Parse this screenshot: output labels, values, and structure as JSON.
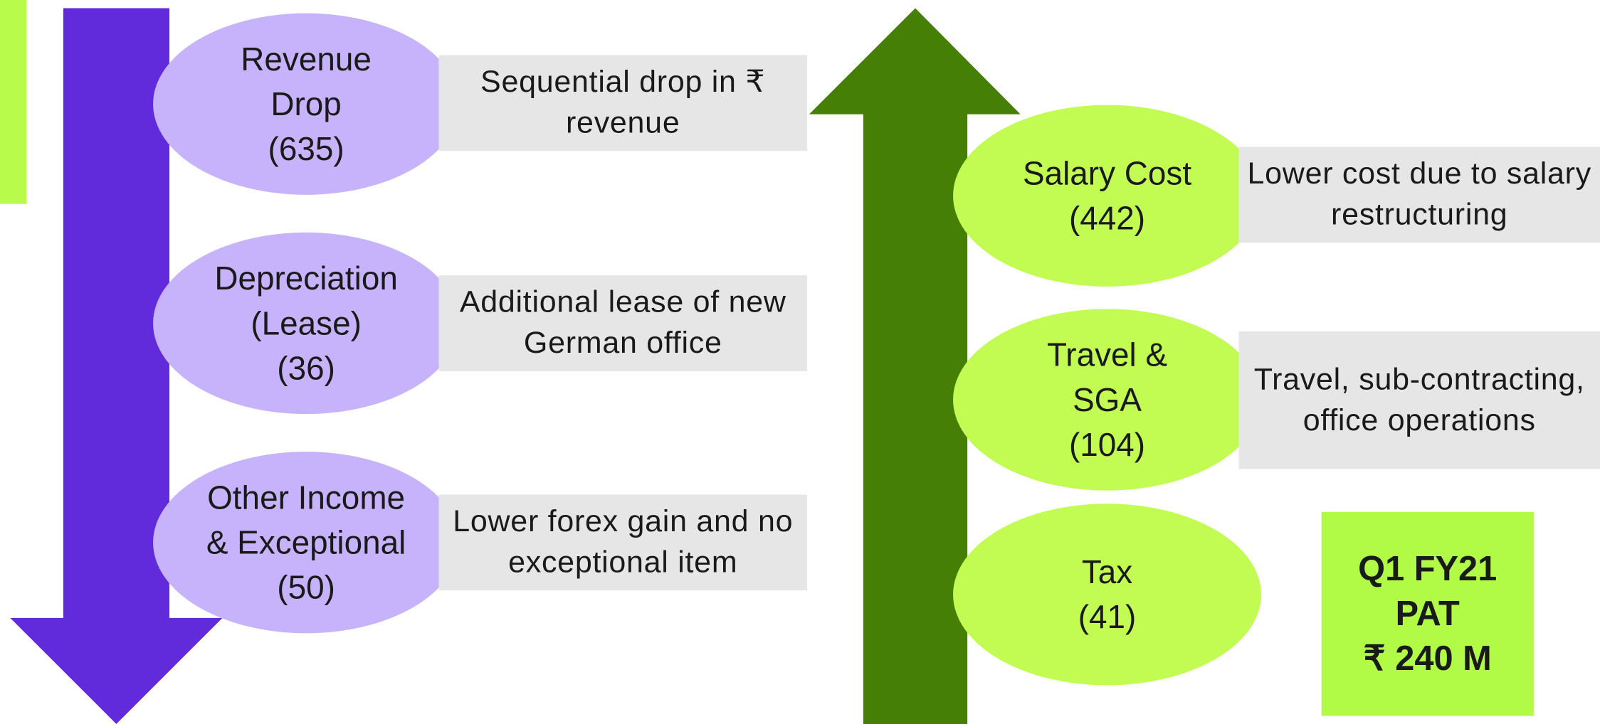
{
  "left_items": [
    {
      "label": "Revenue Drop",
      "amount": "(635)",
      "note": "Sequential drop in ₹ revenue"
    },
    {
      "label": "Depreciation (Lease)",
      "amount": "(36)",
      "note": "Additional lease of new German office"
    },
    {
      "label": "Other Income & Exceptional",
      "amount": "(50)",
      "note": "Lower forex gain and no exceptional item"
    }
  ],
  "right_items": [
    {
      "label": "Salary Cost",
      "amount": "(442)",
      "note": "Lower cost due to salary restructuring"
    },
    {
      "label": "Travel & SGA",
      "amount": "(104)",
      "note": "Travel, sub-contracting, office operations"
    },
    {
      "label": "Tax",
      "amount": "(41)"
    }
  ],
  "summary": {
    "lines": [
      "Q1 FY21",
      "PAT",
      "₹ 240 M"
    ]
  }
}
